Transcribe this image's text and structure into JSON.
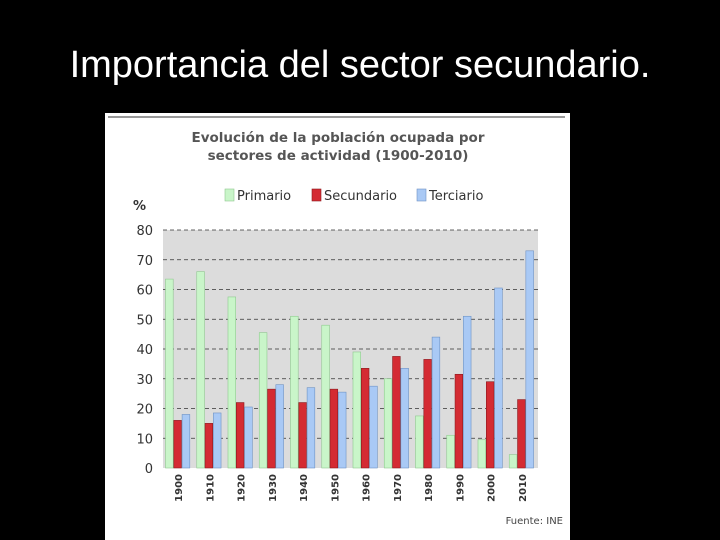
{
  "slide": {
    "title": "Importancia del sector secundario."
  },
  "colors": {
    "background": "#000000",
    "primario": "#c9f5c9",
    "secundario": "#d42b33",
    "terciario": "#a9c9f5",
    "plot_bg": "#dcdcdc"
  },
  "chart_data": {
    "type": "bar",
    "title_line1": "Evolución de la población ocupada por",
    "title_line2": "sectores de actividad (1900-2010)",
    "ylabel": "%",
    "ylim": [
      0,
      80
    ],
    "yticks": [
      0,
      10,
      20,
      30,
      40,
      50,
      60,
      70,
      80
    ],
    "grid": "dashed horizontal",
    "legend_position": "top",
    "categories": [
      "1900",
      "1910",
      "1920",
      "1930",
      "1940",
      "1950",
      "1960",
      "1970",
      "1980",
      "1990",
      "2000",
      "2010"
    ],
    "series": [
      {
        "name": "Primario",
        "values": [
          63.5,
          66,
          57.5,
          45.5,
          51,
          48,
          39,
          30,
          17.5,
          11,
          9.5,
          4.5
        ]
      },
      {
        "name": "Secundario",
        "values": [
          16,
          15,
          22,
          26.5,
          22,
          26.5,
          33.5,
          37.5,
          36.5,
          31.5,
          29,
          23
        ]
      },
      {
        "name": "Terciario",
        "values": [
          18,
          18.5,
          20.5,
          28,
          27,
          25.5,
          27.5,
          33.5,
          44,
          51,
          60.5,
          73
        ]
      }
    ],
    "source": "Fuente: INE"
  }
}
